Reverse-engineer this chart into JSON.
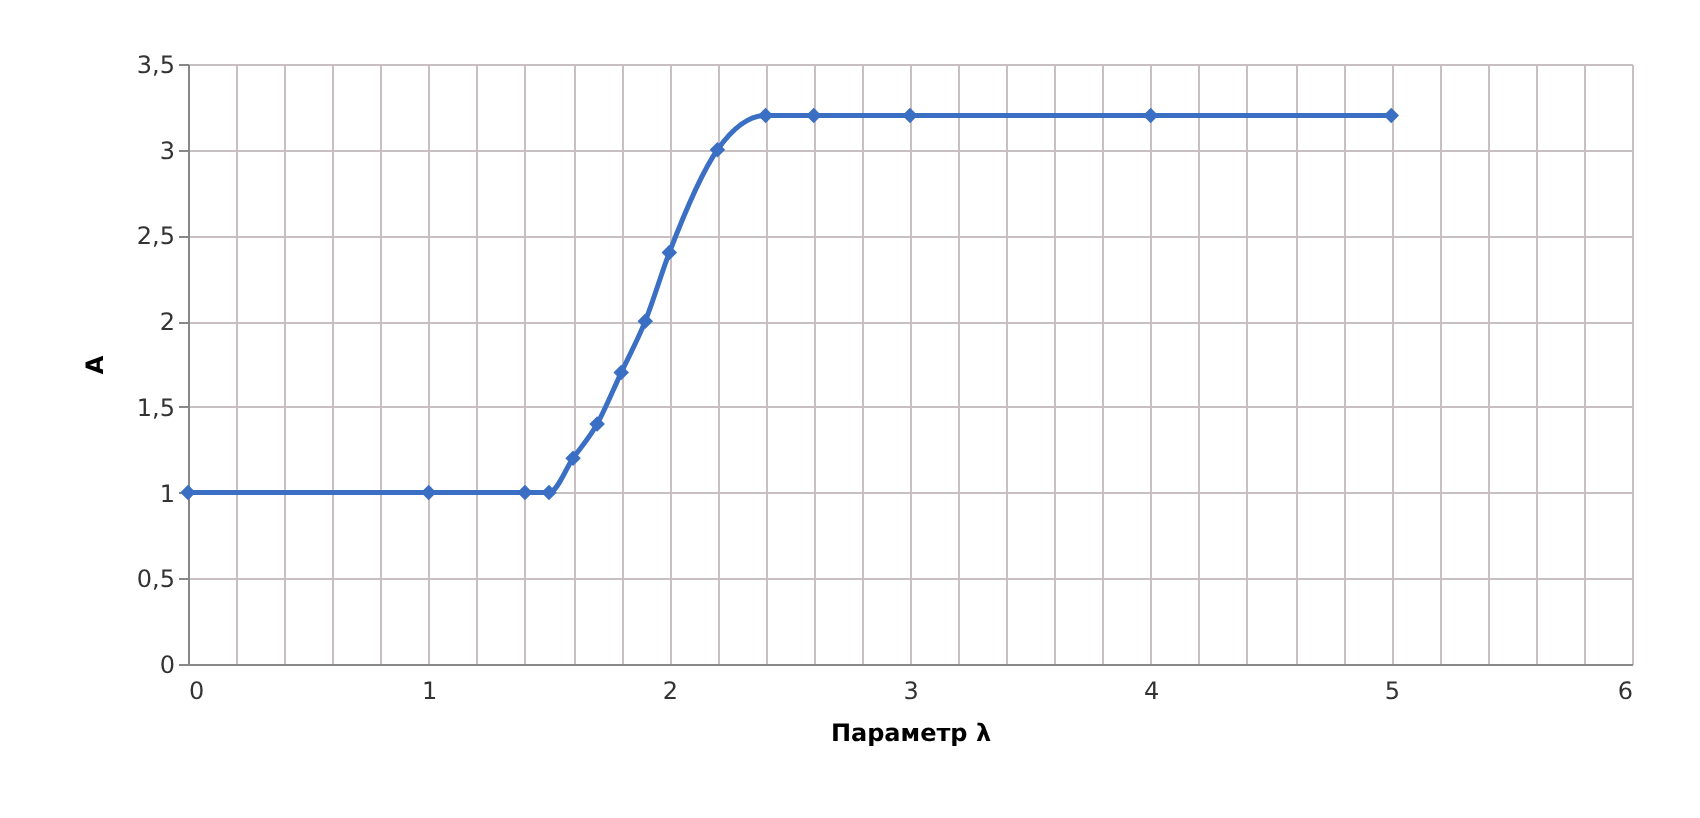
{
  "chart_data": {
    "type": "line",
    "xlabel": "Параметр λ",
    "ylabel": "A",
    "x": [
      0,
      1,
      1.4,
      1.5,
      1.6,
      1.7,
      1.8,
      1.9,
      2,
      2.2,
      2.4,
      2.6,
      3,
      4,
      5
    ],
    "series": [
      {
        "color": "#3a6fc4",
        "values": [
          1,
          1,
          1,
          1,
          1.2,
          1.4,
          1.7,
          2,
          2.4,
          3,
          3.2,
          3.2,
          3.2,
          3.2,
          3.2
        ]
      }
    ],
    "xlim": [
      0,
      6
    ],
    "xticks": [
      0,
      {
        "value": 0.2,
        "label": null
      },
      {
        "value": 0.4,
        "label": null
      },
      {
        "value": 0.6,
        "label": null
      },
      {
        "value": 0.8,
        "label": null
      },
      1,
      {
        "value": 1.2,
        "label": null
      },
      {
        "value": 1.4,
        "label": null
      },
      {
        "value": 1.6,
        "label": null
      },
      {
        "value": 1.8,
        "label": null
      },
      2,
      {
        "value": 2.2,
        "label": null
      },
      {
        "value": 2.4,
        "label": null
      },
      {
        "value": 2.6,
        "label": null
      },
      {
        "value": 2.8,
        "label": null
      },
      3,
      {
        "value": 3.2,
        "label": null
      },
      {
        "value": 3.4,
        "label": null
      },
      {
        "value": 3.6,
        "label": null
      },
      {
        "value": 3.8,
        "label": null
      },
      4,
      {
        "value": 4.2,
        "label": null
      },
      {
        "value": 4.4,
        "label": null
      },
      {
        "value": 4.6,
        "label": null
      },
      {
        "value": 4.8,
        "label": null
      },
      5,
      {
        "value": 5.2,
        "label": null
      },
      {
        "value": 5.4,
        "label": null
      },
      {
        "value": 5.6,
        "label": null
      },
      {
        "value": 5.8,
        "label": null
      },
      6
    ],
    "ylim": [
      0,
      3.5
    ],
    "yticks": [
      0,
      {
        "value": 0.5,
        "label": "0,5"
      },
      1,
      {
        "value": 1.5,
        "label": "1,5"
      },
      2,
      {
        "value": 2.5,
        "label": "2,5"
      },
      3,
      {
        "value": 3.5,
        "label": "3,5"
      }
    ],
    "grid": true,
    "marker": "diamond",
    "line_style": "solid",
    "legend": false
  }
}
